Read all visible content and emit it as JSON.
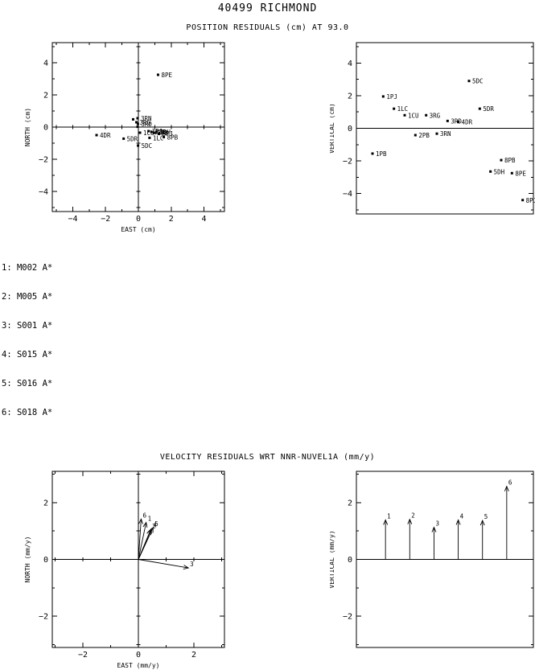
{
  "page": {
    "title": "40499 RICHMOND",
    "position_subtitle": "POSITION RESIDUALS (cm) AT 93.0",
    "velocity_subtitle": "VELOCITY RESIDUALS WRT NNR-NUVEL1A (mm/y)"
  },
  "colors": {
    "ink": "#000000",
    "background": "#ffffff"
  },
  "legend": {
    "items": [
      "1: M002 A*",
      "2: M005 A*",
      "3: S001 A*",
      "4: S015 A*",
      "5: S016 A*",
      "6: S018 A*"
    ]
  },
  "chart_data": [
    {
      "id": "pos-ne",
      "type": "scatter",
      "xlabel": "EAST (cm)",
      "ylabel": "NORTH (cm)",
      "xlim": [
        -5.25,
        5.25
      ],
      "ylim": [
        -5.25,
        5.25
      ],
      "xticks": [
        -4,
        -2,
        0,
        2,
        4
      ],
      "yticks": [
        -4,
        -2,
        0,
        2,
        4
      ],
      "minor_step": 1,
      "crosshair": true,
      "points": [
        {
          "label": "8PE",
          "x": 1.2,
          "y": 3.25
        },
        {
          "label": "3RN",
          "x": -0.05,
          "y": 0.55
        },
        {
          "label": "",
          "x": -0.32,
          "y": 0.48
        },
        {
          "label": "3RG",
          "x": -0.12,
          "y": 0.3
        },
        {
          "label": "3RD",
          "x": -0.03,
          "y": 0.2
        },
        {
          "label": "",
          "x": -0.05,
          "y": 0.02
        },
        {
          "label": "4DR",
          "x": -2.55,
          "y": -0.5
        },
        {
          "label": "5DR",
          "x": -0.9,
          "y": -0.72
        },
        {
          "label": "5DC",
          "x": -0.02,
          "y": -1.15
        },
        {
          "label": "1CU",
          "x": 0.1,
          "y": -0.35
        },
        {
          "label": "1PJ",
          "x": 0.62,
          "y": -0.25
        },
        {
          "label": "2PB",
          "x": 0.8,
          "y": -0.3
        },
        {
          "label": "1PB",
          "x": 0.95,
          "y": -0.36
        },
        {
          "label": "5DH",
          "x": 1.1,
          "y": -0.3
        },
        {
          "label": "8PJ",
          "x": 1.25,
          "y": -0.4
        },
        {
          "label": "1LC",
          "x": 0.68,
          "y": -0.67
        },
        {
          "label": "8PB",
          "x": 1.55,
          "y": -0.62
        }
      ]
    },
    {
      "id": "pos-v",
      "type": "ordinal-scatter",
      "ylabel": "VERTICAL (cm)",
      "ylim": [
        -5.25,
        5.25
      ],
      "yticks": [
        -4,
        -2,
        0,
        2,
        4
      ],
      "minor_step": 1,
      "zero_line": true,
      "n_slots": 16.5,
      "slot_offset": 0.5,
      "points": [
        {
          "label": "1PB",
          "v": -1.55
        },
        {
          "label": "1PJ",
          "v": 1.95
        },
        {
          "label": "1LC",
          "v": 1.2
        },
        {
          "label": "1CU",
          "v": 0.8
        },
        {
          "label": "2PB",
          "v": -0.42
        },
        {
          "label": "3RG",
          "v": 0.8
        },
        {
          "label": "3RN",
          "v": -0.33
        },
        {
          "label": "3RD",
          "v": 0.45
        },
        {
          "label": "4DR",
          "v": 0.4
        },
        {
          "label": "5DC",
          "v": 2.9
        },
        {
          "label": "5DR",
          "v": 1.2
        },
        {
          "label": "5DH",
          "v": -2.65
        },
        {
          "label": "8PB",
          "v": -1.95
        },
        {
          "label": "8PE",
          "v": -2.75
        },
        {
          "label": "8PJ",
          "v": -4.4
        }
      ]
    },
    {
      "id": "vel-ne",
      "type": "vector",
      "xlabel": "EAST (mm/y)",
      "ylabel": "NORTH (mm/y)",
      "xlim": [
        -3.1,
        3.1
      ],
      "ylim": [
        -3.1,
        3.1
      ],
      "xticks": [
        -2,
        0,
        2
      ],
      "yticks": [
        -2,
        0,
        2
      ],
      "minor_step": 1,
      "crosshair": true,
      "vectors": [
        {
          "label": "1",
          "x": 0.28,
          "y": 1.3
        },
        {
          "label": "2",
          "x": 0.44,
          "y": 1.04
        },
        {
          "label": "3",
          "x": 1.8,
          "y": -0.3
        },
        {
          "label": "4",
          "x": 0.47,
          "y": 1.08
        },
        {
          "label": "5",
          "x": 0.53,
          "y": 1.12
        },
        {
          "label": "6",
          "x": 0.1,
          "y": 1.42
        }
      ]
    },
    {
      "id": "vel-v",
      "type": "ordinal-vector",
      "ylabel": "VERTICAL (mm/y)",
      "ylim": [
        -3.1,
        3.1
      ],
      "yticks": [
        -2,
        0,
        2
      ],
      "minor_step": 1,
      "zero_line": true,
      "n_slots": 7.3,
      "slot_offset": 0.2,
      "vectors": [
        {
          "label": "1",
          "v": 1.39
        },
        {
          "label": "2",
          "v": 1.41
        },
        {
          "label": "3",
          "v": 1.13
        },
        {
          "label": "4",
          "v": 1.39
        },
        {
          "label": "5",
          "v": 1.37
        },
        {
          "label": "6",
          "v": 2.57
        }
      ]
    }
  ]
}
